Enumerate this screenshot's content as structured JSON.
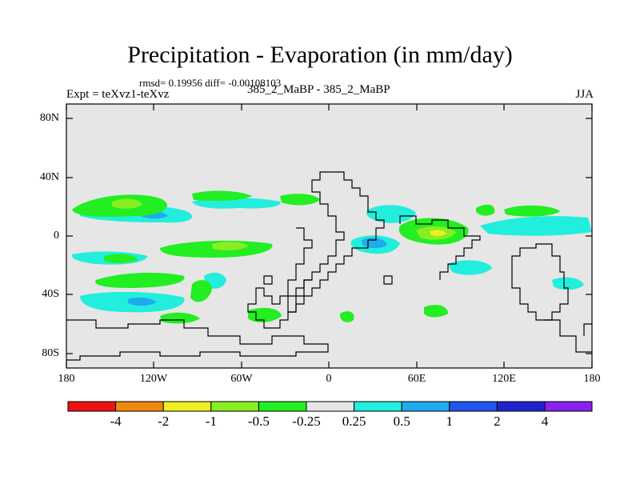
{
  "title": "Precipitation - Evaporation (in mm/day)",
  "stats": "rmsd= 0.19956 diff= -0.00108103",
  "expt_label": "Expt = teXvz1-teXvz",
  "case_label": "385_2_MaBP - 385_2_MaBP",
  "season": "JJA",
  "colors": {
    "background_fill": "#e6e6e6",
    "land_outline": "#000000",
    "green": "#22ee22",
    "light_green": "#88ee22",
    "yellow": "#eeee22",
    "cyan": "#22eedd",
    "light_blue": "#22aaee"
  },
  "map": {
    "y_axis_labels": [
      "80N",
      "40N",
      "0",
      "40S",
      "80S"
    ],
    "x_axis_labels": [
      "180",
      "120W",
      "60W",
      "0",
      "60E",
      "120E",
      "180"
    ]
  },
  "colorbar": {
    "colors": [
      "#ee1111",
      "#ee8811",
      "#eeee22",
      "#88ee22",
      "#22ee22",
      "#e6e6e6",
      "#22eedd",
      "#22aaee",
      "#2255ee",
      "#2222cc",
      "#8822ee"
    ],
    "labels": [
      "-4",
      "-2",
      "-1",
      "-0.5",
      "-0.25",
      "0.25",
      "0.5",
      "1",
      "2",
      "4"
    ]
  }
}
